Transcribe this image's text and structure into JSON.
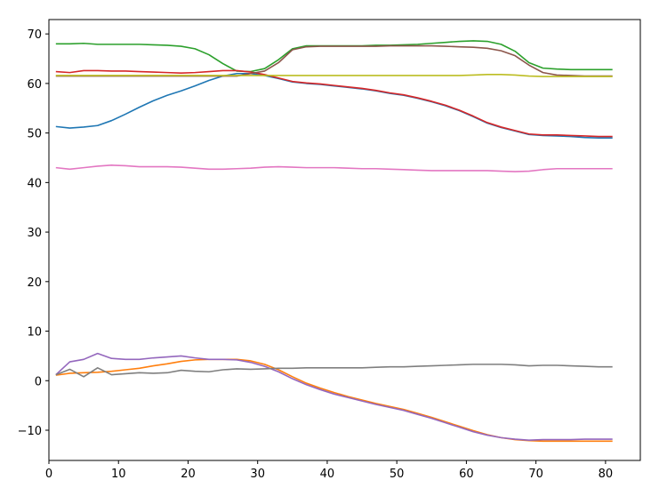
{
  "chart_data": {
    "type": "line",
    "x": [
      1,
      3,
      5,
      7,
      9,
      11,
      13,
      15,
      17,
      19,
      21,
      23,
      25,
      27,
      29,
      31,
      33,
      35,
      37,
      39,
      41,
      43,
      45,
      47,
      49,
      51,
      53,
      55,
      57,
      59,
      61,
      63,
      65,
      67,
      69,
      71,
      73,
      75,
      77,
      79,
      81
    ],
    "series": [
      {
        "color": "#1f77b4",
        "values": [
          51.3,
          51,
          51.2,
          51.5,
          52.5,
          53.8,
          55.2,
          56.5,
          57.6,
          58.5,
          59.5,
          60.6,
          61.5,
          62,
          62,
          61.6,
          61,
          60.3,
          60,
          59.8,
          59.5,
          59.2,
          58.9,
          58.5,
          58,
          57.6,
          57,
          56.3,
          55.5,
          54.5,
          53.3,
          52,
          51.1,
          50.4,
          49.7,
          49.5,
          49.4,
          49.3,
          49.1,
          49,
          49
        ]
      },
      {
        "color": "#ff7f0e",
        "values": [
          1.1,
          1.5,
          1.6,
          1.7,
          1.9,
          2.2,
          2.5,
          3,
          3.4,
          3.9,
          4.2,
          4.3,
          4.3,
          4.3,
          4,
          3.3,
          2.2,
          0.8,
          -0.5,
          -1.5,
          -2.4,
          -3.2,
          -3.9,
          -4.6,
          -5.2,
          -5.8,
          -6.6,
          -7.4,
          -8.3,
          -9.2,
          -10.1,
          -10.9,
          -11.5,
          -11.9,
          -12.1,
          -12.2,
          -12.2,
          -12.2,
          -12.2,
          -12.2,
          -12.2
        ]
      },
      {
        "color": "#2ca02c",
        "values": [
          68,
          68,
          68.1,
          67.9,
          67.9,
          67.9,
          67.9,
          67.8,
          67.7,
          67.5,
          67,
          65.8,
          64,
          62.5,
          62.4,
          63,
          64.8,
          67,
          67.6,
          67.6,
          67.6,
          67.6,
          67.6,
          67.7,
          67.7,
          67.8,
          67.9,
          68.1,
          68.3,
          68.5,
          68.6,
          68.5,
          67.9,
          66.5,
          64.2,
          63.1,
          62.9,
          62.8,
          62.8,
          62.8,
          62.8
        ]
      },
      {
        "color": "#d62728",
        "values": [
          62.4,
          62.2,
          62.6,
          62.6,
          62.5,
          62.5,
          62.4,
          62.3,
          62.2,
          62.1,
          62.2,
          62.4,
          62.6,
          62.6,
          62.3,
          61.8,
          61.1,
          60.4,
          60.1,
          59.9,
          59.6,
          59.3,
          59,
          58.6,
          58.1,
          57.7,
          57.1,
          56.4,
          55.6,
          54.6,
          53.4,
          52.1,
          51.2,
          50.5,
          49.8,
          49.6,
          49.6,
          49.5,
          49.4,
          49.3,
          49.3
        ]
      },
      {
        "color": "#9467bd",
        "values": [
          1.2,
          3.8,
          4.3,
          5.5,
          4.5,
          4.3,
          4.3,
          4.6,
          4.8,
          5,
          4.6,
          4.3,
          4.3,
          4.2,
          3.7,
          2.9,
          1.8,
          0.4,
          -0.8,
          -1.8,
          -2.7,
          -3.4,
          -4.1,
          -4.8,
          -5.4,
          -6,
          -6.8,
          -7.6,
          -8.5,
          -9.4,
          -10.3,
          -11,
          -11.5,
          -11.8,
          -12,
          -11.9,
          -11.9,
          -11.9,
          -11.8,
          -11.8,
          -11.8
        ]
      },
      {
        "color": "#8c564b",
        "values": [
          61.5,
          61.5,
          61.5,
          61.5,
          61.5,
          61.5,
          61.5,
          61.5,
          61.5,
          61.5,
          61.5,
          61.5,
          61.5,
          61.5,
          62,
          62.5,
          64.2,
          66.8,
          67.4,
          67.5,
          67.5,
          67.5,
          67.5,
          67.5,
          67.6,
          67.6,
          67.6,
          67.6,
          67.5,
          67.4,
          67.3,
          67.1,
          66.6,
          65.6,
          63.7,
          62.2,
          61.7,
          61.6,
          61.5,
          61.5,
          61.5
        ]
      },
      {
        "color": "#e377c2",
        "values": [
          43,
          42.7,
          43,
          43.3,
          43.5,
          43.4,
          43.2,
          43.2,
          43.2,
          43.1,
          42.9,
          42.7,
          42.7,
          42.8,
          42.9,
          43.1,
          43.2,
          43.1,
          43,
          43,
          43,
          42.9,
          42.8,
          42.8,
          42.7,
          42.6,
          42.5,
          42.4,
          42.4,
          42.4,
          42.4,
          42.4,
          42.3,
          42.2,
          42.3,
          42.6,
          42.8,
          42.8,
          42.8,
          42.8,
          42.8
        ]
      },
      {
        "color": "#7f7f7f",
        "values": [
          1.2,
          2.3,
          0.8,
          2.6,
          1.2,
          1.4,
          1.6,
          1.5,
          1.6,
          2.1,
          1.9,
          1.8,
          2.2,
          2.4,
          2.3,
          2.4,
          2.5,
          2.5,
          2.6,
          2.6,
          2.6,
          2.6,
          2.6,
          2.7,
          2.8,
          2.8,
          2.9,
          3,
          3.1,
          3.2,
          3.3,
          3.3,
          3.3,
          3.2,
          3,
          3.1,
          3.1,
          3,
          2.9,
          2.8,
          2.8
        ]
      },
      {
        "color": "#bcbd22",
        "values": [
          61.6,
          61.6,
          61.6,
          61.6,
          61.6,
          61.6,
          61.6,
          61.6,
          61.6,
          61.6,
          61.6,
          61.6,
          61.6,
          61.6,
          61.6,
          61.6,
          61.6,
          61.6,
          61.6,
          61.6,
          61.6,
          61.6,
          61.6,
          61.6,
          61.6,
          61.6,
          61.6,
          61.6,
          61.6,
          61.6,
          61.7,
          61.8,
          61.8,
          61.7,
          61.5,
          61.4,
          61.4,
          61.4,
          61.4,
          61.4,
          61.4
        ]
      }
    ],
    "xlim": [
      0,
      85
    ],
    "ylim": [
      -16.1,
      72.9
    ],
    "xticks": [
      0,
      10,
      20,
      30,
      40,
      50,
      60,
      70,
      80
    ],
    "yticks": [
      {
        "value": -10,
        "label": "−10"
      },
      0,
      10,
      20,
      30,
      40,
      50,
      60,
      70
    ]
  }
}
